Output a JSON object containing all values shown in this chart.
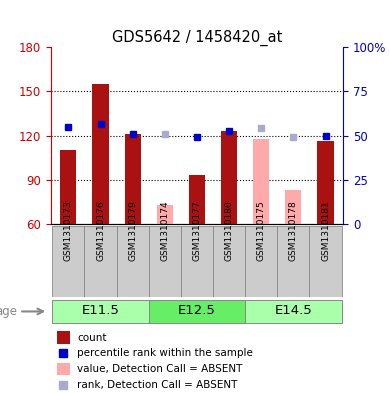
{
  "title": "GDS5642 / 1458420_at",
  "samples": [
    "GSM1310173",
    "GSM1310176",
    "GSM1310179",
    "GSM1310174",
    "GSM1310177",
    "GSM1310180",
    "GSM1310175",
    "GSM1310178",
    "GSM1310181"
  ],
  "age_groups": [
    {
      "label": "E11.5",
      "start": 0,
      "end": 3
    },
    {
      "label": "E12.5",
      "start": 3,
      "end": 6
    },
    {
      "label": "E14.5",
      "start": 6,
      "end": 9
    }
  ],
  "count_values": [
    110,
    155,
    121,
    null,
    93,
    123,
    null,
    null,
    116
  ],
  "rank_values": [
    126,
    128,
    121,
    null,
    119,
    123,
    null,
    null,
    120
  ],
  "absent_count_values": [
    null,
    null,
    null,
    73,
    null,
    null,
    118,
    83,
    null
  ],
  "absent_rank_values": [
    null,
    null,
    null,
    121,
    null,
    null,
    125,
    119,
    null
  ],
  "y_min": 60,
  "y_max": 180,
  "y_ticks": [
    60,
    90,
    120,
    150,
    180
  ],
  "y2_ticks": [
    0,
    25,
    50,
    75,
    100
  ],
  "y2_tick_positions": [
    60,
    90,
    120,
    150,
    180
  ],
  "bar_color_present": "#aa1111",
  "bar_color_absent": "#ffaaaa",
  "dot_color_present": "#0000cc",
  "dot_color_absent": "#aaaacc",
  "age_group_color_light": "#aaffaa",
  "age_group_color_dark": "#66ee66",
  "grid_color": "#000000",
  "tick_label_color_left": "#cc0000",
  "tick_label_color_right": "#0000cc",
  "background_color": "#ffffff",
  "sample_box_color": "#cccccc",
  "sample_box_edge": "#888888"
}
